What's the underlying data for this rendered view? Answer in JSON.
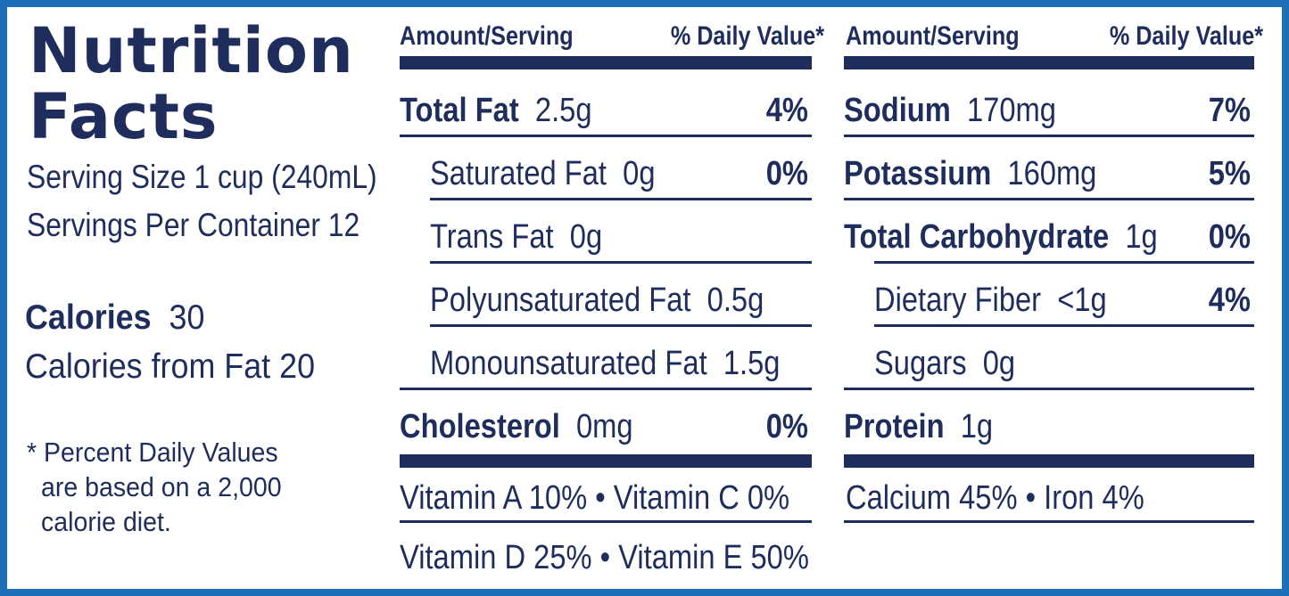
{
  "title_line1": "Nutrition",
  "title_line2": "Facts",
  "serving_size": "Serving Size 1 cup (240mL)",
  "servings_per_container": "Servings Per Container  12",
  "calories": {
    "label": "Calories",
    "value": "30"
  },
  "calories_from_fat": "Calories from Fat  20",
  "footnote": {
    "line1": "* Percent Daily Values",
    "line2": "are based on a 2,000",
    "line3": "calorie diet."
  },
  "headers": {
    "amount": "Amount/Serving",
    "dv": "% Daily Value*"
  },
  "left_nutrients": [
    {
      "name": "Total Fat",
      "amount": "2.5g",
      "dv": "4%"
    },
    {
      "name": "Saturated Fat",
      "amount": "0g",
      "dv": "0%"
    },
    {
      "name": "Trans Fat",
      "amount": "0g",
      "dv": ""
    },
    {
      "name": "Polyunsaturated Fat",
      "amount": "0.5g",
      "dv": ""
    },
    {
      "name": "Monounsaturated Fat",
      "amount": "1.5g",
      "dv": ""
    },
    {
      "name": "Cholesterol",
      "amount": "0mg",
      "dv": "0%"
    }
  ],
  "right_nutrients": [
    {
      "name": "Sodium",
      "amount": "170mg",
      "dv": "7%"
    },
    {
      "name": "Potassium",
      "amount": "160mg",
      "dv": "5%"
    },
    {
      "name": "Total Carbohydrate",
      "amount": "1g",
      "dv": "0%"
    },
    {
      "name": "Dietary Fiber",
      "amount": "<1g",
      "dv": "4%"
    },
    {
      "name": "Sugars",
      "amount": "0g",
      "dv": ""
    },
    {
      "name": "Protein",
      "amount": "1g",
      "dv": ""
    }
  ],
  "vitamins": {
    "row1": "Vitamin A 10%  •  Vitamin C  0%",
    "row2": "Vitamin D 25%  •  Vitamin E 50%",
    "row3": "Calcium 45%  •  Iron  4%"
  },
  "colors": {
    "border": "#1d6fb8",
    "ink": "#1f2d5c"
  }
}
